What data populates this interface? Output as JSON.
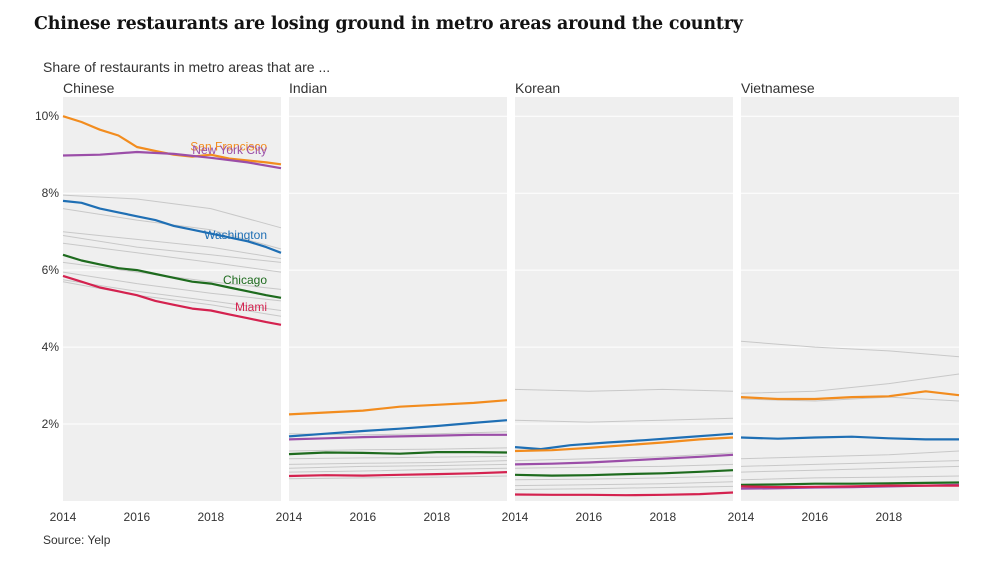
{
  "title": "Chinese restaurants are losing ground in metro areas around the country",
  "subtitle": "Share of restaurants in metro areas that are ...",
  "source": "Source: Yelp",
  "colors": {
    "panel_bg": "#efefef",
    "gridline": "#ffffff",
    "background_series": "#c8c8c8",
    "San Francisco": "#f28c1e",
    "New York City": "#9b4ea8",
    "Washington": "#1f6fb4",
    "Chicago": "#1e6b1e",
    "Miami": "#d4224f"
  },
  "chart_data": {
    "type": "line",
    "ylabel": "",
    "y_ticks": [
      2,
      4,
      6,
      8,
      10
    ],
    "y_tick_labels": [
      "2%",
      "4%",
      "6%",
      "8%",
      "10%"
    ],
    "ylim": [
      0,
      10.5
    ],
    "x_ticks": [
      2014,
      2016,
      2018
    ],
    "xlim": [
      2014,
      2019.9
    ],
    "grid": true,
    "legend": "direct labels",
    "panels": [
      {
        "name": "Chinese",
        "series": [
          {
            "name": "San Francisco",
            "label_shown": true,
            "x": [
              2014,
              2014.5,
              2015,
              2015.5,
              2016,
              2016.5,
              2017,
              2017.5,
              2018,
              2018.5,
              2019,
              2019.5,
              2019.9
            ],
            "values": [
              10.0,
              9.85,
              9.65,
              9.5,
              9.2,
              9.1,
              9.0,
              8.95,
              9.0,
              8.9,
              8.85,
              8.8,
              8.75
            ]
          },
          {
            "name": "New York City",
            "label_shown": true,
            "x": [
              2014,
              2015,
              2016,
              2017,
              2018,
              2019,
              2019.9
            ],
            "values": [
              8.98,
              9.0,
              9.07,
              9.02,
              8.92,
              8.8,
              8.65
            ]
          },
          {
            "name": "Washington",
            "label_shown": true,
            "x": [
              2014,
              2014.5,
              2015,
              2015.5,
              2016,
              2016.5,
              2017,
              2017.5,
              2018,
              2018.5,
              2019,
              2019.5,
              2019.9
            ],
            "values": [
              7.8,
              7.75,
              7.6,
              7.5,
              7.4,
              7.3,
              7.15,
              7.05,
              6.95,
              6.85,
              6.75,
              6.6,
              6.45
            ]
          },
          {
            "name": "Chicago",
            "label_shown": true,
            "x": [
              2014,
              2014.5,
              2015,
              2015.5,
              2016,
              2016.5,
              2017,
              2017.5,
              2018,
              2018.5,
              2019,
              2019.5,
              2019.9
            ],
            "values": [
              6.4,
              6.25,
              6.15,
              6.05,
              6.0,
              5.9,
              5.8,
              5.7,
              5.65,
              5.55,
              5.45,
              5.35,
              5.28
            ]
          },
          {
            "name": "Miami",
            "label_shown": true,
            "x": [
              2014,
              2014.5,
              2015,
              2015.5,
              2016,
              2016.5,
              2017,
              2017.5,
              2018,
              2018.5,
              2019,
              2019.5,
              2019.9
            ],
            "values": [
              5.85,
              5.7,
              5.55,
              5.45,
              5.35,
              5.2,
              5.1,
              5.0,
              4.95,
              4.85,
              4.75,
              4.65,
              4.58
            ]
          },
          {
            "x": [
              2014,
              2016,
              2018,
              2019.9
            ],
            "values": [
              7.95,
              7.85,
              7.6,
              7.1
            ]
          },
          {
            "x": [
              2014,
              2016,
              2018,
              2019.9
            ],
            "values": [
              7.6,
              7.3,
              7.05,
              6.55
            ]
          },
          {
            "x": [
              2014,
              2016,
              2018,
              2019.9
            ],
            "values": [
              7.0,
              6.8,
              6.6,
              6.3
            ]
          },
          {
            "x": [
              2014,
              2016,
              2018,
              2019.9
            ],
            "values": [
              6.9,
              6.6,
              6.4,
              6.2
            ]
          },
          {
            "x": [
              2014,
              2016,
              2018,
              2019.9
            ],
            "values": [
              6.7,
              6.45,
              6.2,
              5.95
            ]
          },
          {
            "x": [
              2014,
              2016,
              2018,
              2019.9
            ],
            "values": [
              6.2,
              5.95,
              5.7,
              5.5
            ]
          },
          {
            "x": [
              2014,
              2016,
              2018,
              2019.9
            ],
            "values": [
              5.95,
              5.65,
              5.4,
              5.2
            ]
          },
          {
            "x": [
              2014,
              2016,
              2018,
              2019.9
            ],
            "values": [
              5.75,
              5.45,
              5.2,
              4.95
            ]
          },
          {
            "x": [
              2014,
              2016,
              2018,
              2019.9
            ],
            "values": [
              5.7,
              5.35,
              5.1,
              4.8
            ]
          }
        ]
      },
      {
        "name": "Indian",
        "series": [
          {
            "name": "San Francisco",
            "label_shown": false,
            "x": [
              2014,
              2015,
              2016,
              2017,
              2018,
              2019,
              2019.9
            ],
            "values": [
              2.25,
              2.3,
              2.35,
              2.45,
              2.5,
              2.55,
              2.62
            ]
          },
          {
            "name": "Washington",
            "label_shown": false,
            "x": [
              2014,
              2015,
              2016,
              2017,
              2018,
              2019,
              2019.9
            ],
            "values": [
              1.68,
              1.75,
              1.82,
              1.88,
              1.95,
              2.03,
              2.1
            ]
          },
          {
            "name": "New York City",
            "label_shown": false,
            "x": [
              2014,
              2015,
              2016,
              2017,
              2018,
              2019,
              2019.9
            ],
            "values": [
              1.6,
              1.63,
              1.66,
              1.68,
              1.7,
              1.72,
              1.72
            ]
          },
          {
            "name": "Chicago",
            "label_shown": false,
            "x": [
              2014,
              2015,
              2016,
              2017,
              2018,
              2019,
              2019.9
            ],
            "values": [
              1.22,
              1.26,
              1.25,
              1.23,
              1.27,
              1.27,
              1.26
            ]
          },
          {
            "name": "Miami",
            "label_shown": false,
            "x": [
              2014,
              2015,
              2016,
              2017,
              2018,
              2019,
              2019.9
            ],
            "values": [
              0.65,
              0.67,
              0.66,
              0.68,
              0.7,
              0.72,
              0.75
            ]
          },
          {
            "x": [
              2014,
              2016,
              2018,
              2019.9
            ],
            "values": [
              1.75,
              1.72,
              1.75,
              1.8
            ]
          },
          {
            "x": [
              2014,
              2016,
              2018,
              2019.9
            ],
            "values": [
              1.3,
              1.33,
              1.35,
              1.38
            ]
          },
          {
            "x": [
              2014,
              2016,
              2018,
              2019.9
            ],
            "values": [
              1.1,
              1.12,
              1.14,
              1.16
            ]
          },
          {
            "x": [
              2014,
              2016,
              2018,
              2019.9
            ],
            "values": [
              0.95,
              0.98,
              1.0,
              1.05
            ]
          },
          {
            "x": [
              2014,
              2016,
              2018,
              2019.9
            ],
            "values": [
              0.85,
              0.9,
              0.92,
              0.95
            ]
          },
          {
            "x": [
              2014,
              2016,
              2018,
              2019.9
            ],
            "values": [
              0.75,
              0.78,
              0.82,
              0.85
            ]
          },
          {
            "x": [
              2014,
              2016,
              2018,
              2019.9
            ],
            "values": [
              0.58,
              0.6,
              0.62,
              0.65
            ]
          }
        ]
      },
      {
        "name": "Korean",
        "series": [
          {
            "name": "Washington",
            "label_shown": false,
            "x": [
              2014,
              2014.7,
              2015.5,
              2016.5,
              2017.5,
              2018.5,
              2019.5,
              2019.9
            ],
            "values": [
              1.4,
              1.35,
              1.45,
              1.52,
              1.58,
              1.65,
              1.72,
              1.75
            ]
          },
          {
            "name": "San Francisco",
            "label_shown": false,
            "x": [
              2014,
              2015,
              2016,
              2017,
              2018,
              2019,
              2019.9
            ],
            "values": [
              1.3,
              1.32,
              1.38,
              1.45,
              1.52,
              1.6,
              1.65
            ]
          },
          {
            "name": "New York City",
            "label_shown": false,
            "x": [
              2014,
              2015,
              2016,
              2017,
              2018,
              2019,
              2019.9
            ],
            "values": [
              0.95,
              0.97,
              1.0,
              1.05,
              1.1,
              1.15,
              1.2
            ]
          },
          {
            "name": "Chicago",
            "label_shown": false,
            "x": [
              2014,
              2015,
              2016,
              2017,
              2018,
              2019,
              2019.9
            ],
            "values": [
              0.68,
              0.66,
              0.67,
              0.7,
              0.72,
              0.76,
              0.8
            ]
          },
          {
            "name": "Miami",
            "label_shown": false,
            "x": [
              2014,
              2015,
              2016,
              2017,
              2018,
              2019,
              2019.9
            ],
            "values": [
              0.17,
              0.16,
              0.16,
              0.15,
              0.16,
              0.18,
              0.22
            ]
          },
          {
            "x": [
              2014,
              2016,
              2018,
              2019.9
            ],
            "values": [
              2.9,
              2.85,
              2.9,
              2.85
            ]
          },
          {
            "x": [
              2014,
              2016,
              2018,
              2019.9
            ],
            "values": [
              2.1,
              2.05,
              2.1,
              2.15
            ]
          },
          {
            "x": [
              2014,
              2016,
              2018,
              2019.9
            ],
            "values": [
              1.05,
              1.1,
              1.15,
              1.25
            ]
          },
          {
            "x": [
              2014,
              2016,
              2018,
              2019.9
            ],
            "values": [
              0.85,
              0.88,
              0.9,
              0.95
            ]
          },
          {
            "x": [
              2014,
              2016,
              2018,
              2019.9
            ],
            "values": [
              0.55,
              0.57,
              0.6,
              0.65
            ]
          },
          {
            "x": [
              2014,
              2016,
              2018,
              2019.9
            ],
            "values": [
              0.4,
              0.42,
              0.45,
              0.5
            ]
          },
          {
            "x": [
              2014,
              2016,
              2018,
              2019.9
            ],
            "values": [
              0.3,
              0.32,
              0.35,
              0.38
            ]
          }
        ]
      },
      {
        "name": "Vietnamese",
        "series": [
          {
            "name": "San Francisco",
            "label_shown": false,
            "x": [
              2014,
              2015,
              2016,
              2017,
              2018,
              2019,
              2019.9
            ],
            "values": [
              2.7,
              2.65,
              2.65,
              2.7,
              2.72,
              2.85,
              2.75
            ]
          },
          {
            "name": "Washington",
            "label_shown": false,
            "x": [
              2014,
              2015,
              2016,
              2017,
              2018,
              2019,
              2019.9
            ],
            "values": [
              1.65,
              1.62,
              1.65,
              1.67,
              1.63,
              1.6,
              1.6
            ]
          },
          {
            "name": "Chicago",
            "label_shown": false,
            "x": [
              2014,
              2015,
              2016,
              2017,
              2018,
              2019,
              2019.9
            ],
            "values": [
              0.42,
              0.43,
              0.45,
              0.45,
              0.46,
              0.47,
              0.48
            ]
          },
          {
            "name": "New York City",
            "label_shown": false,
            "x": [
              2014,
              2015,
              2016,
              2017,
              2018,
              2019,
              2019.9
            ],
            "values": [
              0.32,
              0.33,
              0.35,
              0.36,
              0.38,
              0.4,
              0.42
            ]
          },
          {
            "name": "Miami",
            "label_shown": false,
            "x": [
              2014,
              2015,
              2016,
              2017,
              2018,
              2019,
              2019.9
            ],
            "values": [
              0.38,
              0.36,
              0.37,
              0.38,
              0.4,
              0.4,
              0.4
            ]
          },
          {
            "x": [
              2014,
              2016,
              2018,
              2019.9
            ],
            "values": [
              4.15,
              4.0,
              3.9,
              3.75
            ]
          },
          {
            "x": [
              2014,
              2016,
              2018,
              2019.9
            ],
            "values": [
              2.8,
              2.85,
              3.05,
              3.3
            ]
          },
          {
            "x": [
              2014,
              2016,
              2018,
              2019.9
            ],
            "values": [
              2.65,
              2.6,
              2.7,
              2.6
            ]
          },
          {
            "x": [
              2014,
              2016,
              2018,
              2019.9
            ],
            "values": [
              1.1,
              1.15,
              1.2,
              1.3
            ]
          },
          {
            "x": [
              2014,
              2016,
              2018,
              2019.9
            ],
            "values": [
              0.9,
              0.95,
              1.0,
              1.05
            ]
          },
          {
            "x": [
              2014,
              2016,
              2018,
              2019.9
            ],
            "values": [
              0.75,
              0.8,
              0.85,
              0.9
            ]
          },
          {
            "x": [
              2014,
              2016,
              2018,
              2019.9
            ],
            "values": [
              0.55,
              0.6,
              0.62,
              0.65
            ]
          }
        ]
      }
    ]
  }
}
